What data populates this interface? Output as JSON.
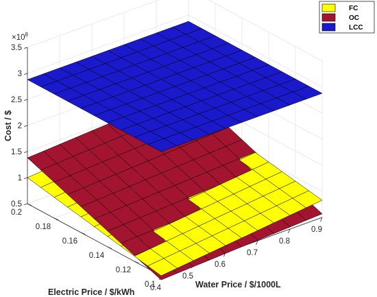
{
  "chart_data": {
    "type": "surface3d",
    "title": "",
    "xlabel": "Water Price / $/1000L",
    "ylabel": "Electric Price / $/kWh",
    "zlabel": "Cost / $",
    "z_exponent_label": "×10",
    "z_exponent_power": "8",
    "xlim": [
      0.4,
      0.9
    ],
    "ylim": [
      0.1,
      0.2
    ],
    "zlim": [
      0.5,
      3.5
    ],
    "xticks": [
      "0.4",
      "0.5",
      "0.6",
      "0.7",
      "0.8",
      "0.9"
    ],
    "yticks": [
      "0.1",
      "0.12",
      "0.14",
      "0.16",
      "0.18",
      "0.2"
    ],
    "zticks": [
      "0.5",
      "1",
      "1.5",
      "2",
      "2.5",
      "3",
      "3.5"
    ],
    "grid": true,
    "legend_position": "top-right",
    "series": [
      {
        "name": "FC",
        "color": "#ffff00",
        "corners": {
          "x0_y0": 0.5,
          "x1_y0": 0.83,
          "x0_y1": 1.0,
          "x1_y1": 1.28
        }
      },
      {
        "name": "OC",
        "color": "#a2142f",
        "corners": {
          "x0_y0": 0.42,
          "x1_y0": 0.57,
          "x0_y1": 1.38,
          "x1_y1": 1.56
        }
      },
      {
        "name": "LCC",
        "color": "#1a1acc",
        "corners": {
          "x0_y0": 2.88,
          "x1_y0": 2.88,
          "x0_y1": 2.88,
          "x1_y1": 2.88
        }
      }
    ]
  }
}
